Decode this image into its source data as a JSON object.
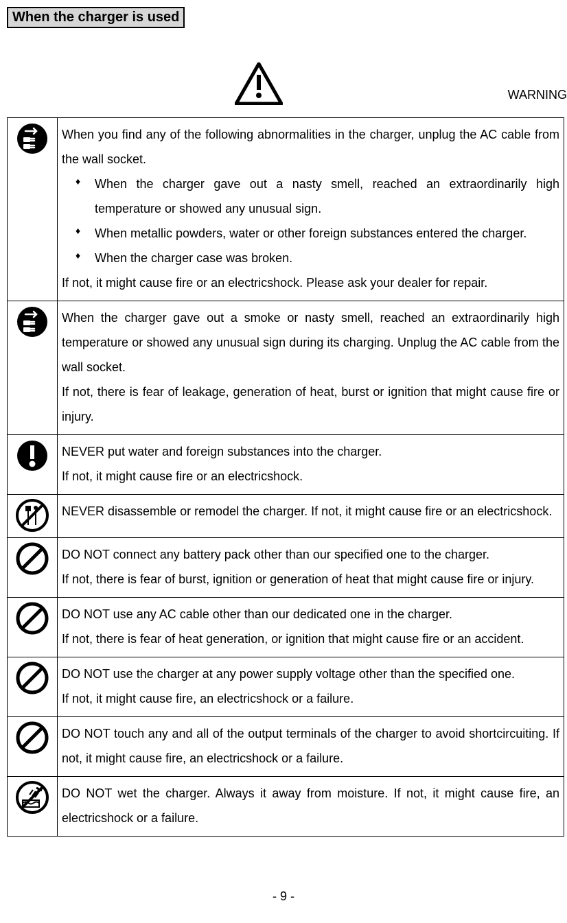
{
  "section_title": "When the charger is used",
  "warning_label": "WARNING",
  "rows": [
    {
      "icon": "unplug",
      "intro": "When you find any of the following abnormalities in the charger, unplug the AC cable from the wall socket.",
      "bullets": [
        "When the charger gave out a nasty smell, reached an extraordinarily high temperature or showed any unusual sign.",
        "When metallic powders, water or other foreign substances entered the charger.",
        "When the charger case was broken."
      ],
      "outro": "If not, it might cause fire or an electricshock.  Please ask your dealer for repair."
    },
    {
      "icon": "unplug",
      "text": "When the charger gave out a smoke or nasty smell, reached an extraordinarily high temperature or showed any unusual sign during its charging.  Unplug the AC cable from the wall socket.\nIf not, there is fear of leakage, generation of heat, burst or ignition that might cause fire or injury."
    },
    {
      "icon": "mandatory",
      "text": "NEVER put water and foreign substances into the charger.\nIf not, it might cause fire or an electricshock."
    },
    {
      "icon": "nodisassemble",
      "text": "NEVER disassemble or remodel the charger. If not, it might cause fire or an electricshock."
    },
    {
      "icon": "prohibit",
      "text": "DO NOT connect any battery pack other than our specified one to the charger.\nIf not, there is fear of burst, ignition or generation of heat that might  cause fire or injury."
    },
    {
      "icon": "prohibit",
      "text": "DO NOT use any AC cable other than our dedicated one in the charger.\nIf not, there is fear of heat generation, or ignition that might cause fire or an accident."
    },
    {
      "icon": "prohibit",
      "text": "DO NOT use the charger at any power supply voltage other than the specified one.\nIf not, it might cause fire, an electricshock or a failure."
    },
    {
      "icon": "prohibit",
      "text": "DO NOT touch any and all of the output terminals of the charger to avoid shortcircuiting.  If not, it might cause fire, an electricshock or a failure."
    },
    {
      "icon": "nowet",
      "text": "DO NOT wet the charger.  Always it away from moisture.  If not, it might   cause fire, an electricshock or a failure."
    }
  ],
  "page_number": "- 9 -"
}
